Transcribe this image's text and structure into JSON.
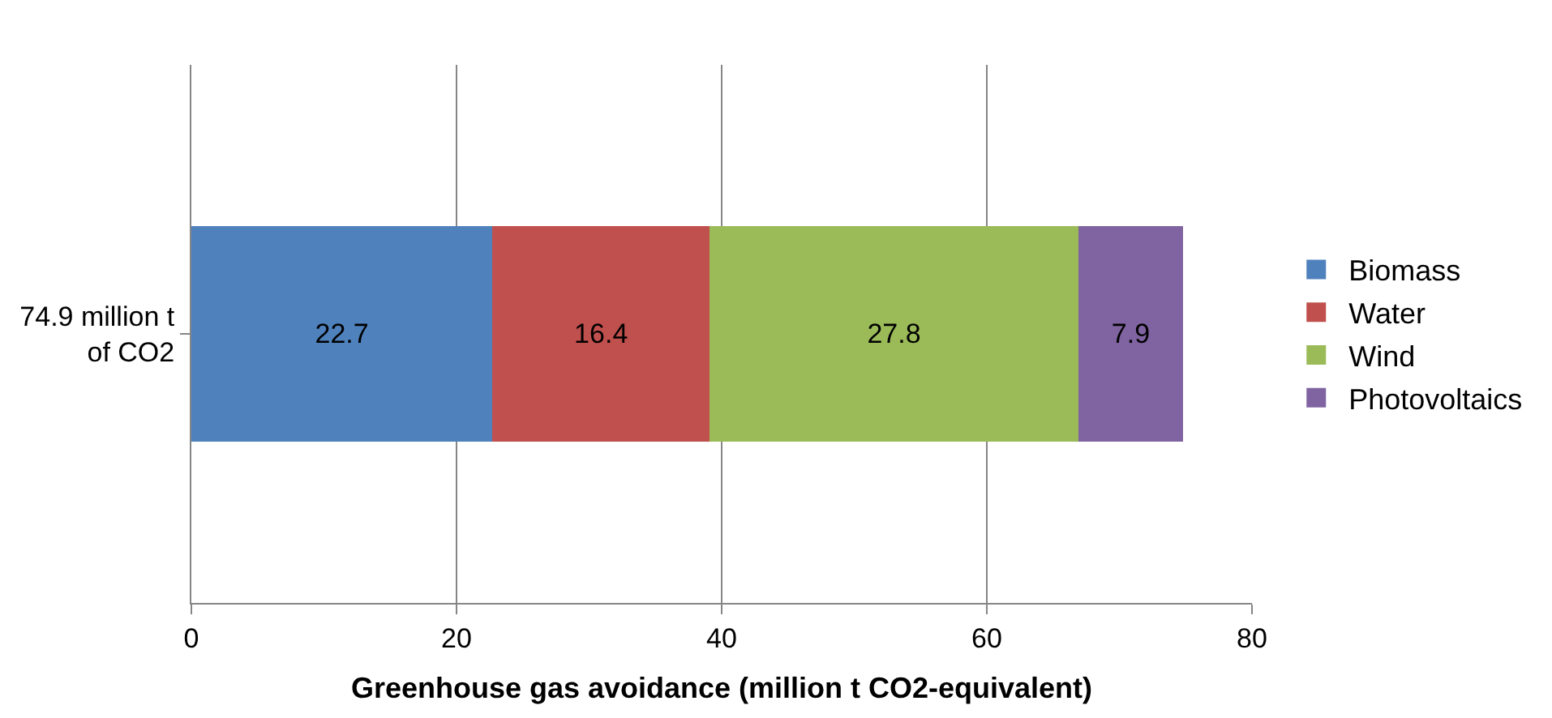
{
  "chart_data": {
    "type": "bar",
    "orientation": "horizontal",
    "stacked": true,
    "xlabel": "Greenhouse gas avoidance (million t CO2-equivalent)",
    "categories": [
      "74.9 million t\nof CO2"
    ],
    "series": [
      {
        "name": "Biomass",
        "color": "#4f81bd",
        "values": [
          22.7
        ]
      },
      {
        "name": "Water",
        "color": "#c0504d",
        "values": [
          16.4
        ]
      },
      {
        "name": "Wind",
        "color": "#9bbb59",
        "values": [
          27.8
        ]
      },
      {
        "name": "Photovoltaics",
        "color": "#8064a2",
        "values": [
          7.9
        ]
      }
    ],
    "xlim": [
      0,
      80
    ],
    "xticks": [
      0,
      20,
      40,
      60,
      80
    ],
    "grid": "x",
    "legend": "right",
    "data_labels": true
  }
}
